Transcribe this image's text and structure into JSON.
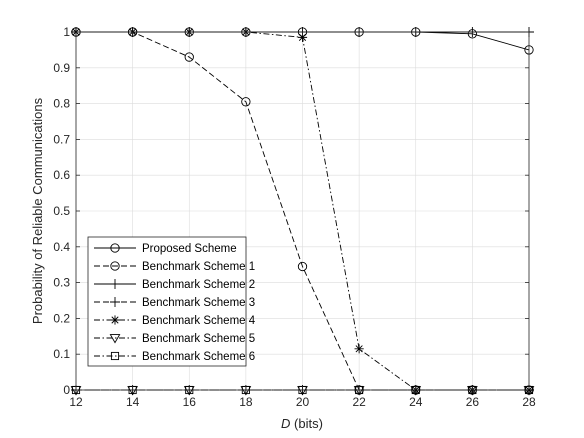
{
  "chart_data": {
    "type": "line",
    "xlabel_italic": "D",
    "xlabel_rest": " (bits)",
    "ylabel": "Probability of Reliable Communications",
    "xlim": [
      12,
      28
    ],
    "ylim": [
      0,
      1
    ],
    "xticks": [
      12,
      14,
      16,
      18,
      20,
      22,
      24,
      26,
      28
    ],
    "yticks": [
      0,
      0.1,
      0.2,
      0.3,
      0.4,
      0.5,
      0.6,
      0.7,
      0.8,
      0.9,
      1
    ],
    "ytick_labels": [
      "0",
      "0.1",
      "0.2",
      "0.3",
      "0.4",
      "0.5",
      "0.6",
      "0.7",
      "0.8",
      "0.9",
      "1"
    ],
    "grid": true,
    "legend_position": "bottom-left",
    "x": [
      12,
      14,
      16,
      18,
      20,
      22,
      24,
      26,
      28
    ],
    "series": [
      {
        "name": "Proposed Scheme",
        "values": [
          1,
          1,
          1,
          1,
          1,
          1,
          1,
          0.995,
          0.95
        ],
        "dash": "solid",
        "marker": "circle"
      },
      {
        "name": "Benchmark Scheme 1",
        "values": [
          1,
          1,
          0.93,
          0.805,
          0.345,
          0,
          0,
          0,
          0
        ],
        "dash": "dashed",
        "marker": "circle"
      },
      {
        "name": "Benchmark Scheme 2",
        "values": [
          1,
          1,
          1,
          1,
          1,
          1,
          1,
          1,
          1
        ],
        "dash": "solid",
        "marker": "plus"
      },
      {
        "name": "Benchmark Scheme 3",
        "values": [
          0,
          0,
          0,
          0,
          0,
          0,
          0,
          0,
          0
        ],
        "dash": "dashed",
        "marker": "plus"
      },
      {
        "name": "Benchmark Scheme 4",
        "values": [
          1,
          1,
          1,
          1,
          0.985,
          0.115,
          0,
          0,
          0
        ],
        "dash": "dashdot",
        "marker": "asterisk"
      },
      {
        "name": "Benchmark Scheme 5",
        "values": [
          0,
          0,
          0,
          0,
          0,
          0,
          0,
          0,
          0
        ],
        "dash": "dashdot",
        "marker": "triangle-down"
      },
      {
        "name": "Benchmark Scheme 6",
        "values": [
          0,
          0,
          0,
          0,
          0,
          0,
          0,
          0,
          0
        ],
        "dash": "dashdot",
        "marker": "square"
      }
    ]
  }
}
